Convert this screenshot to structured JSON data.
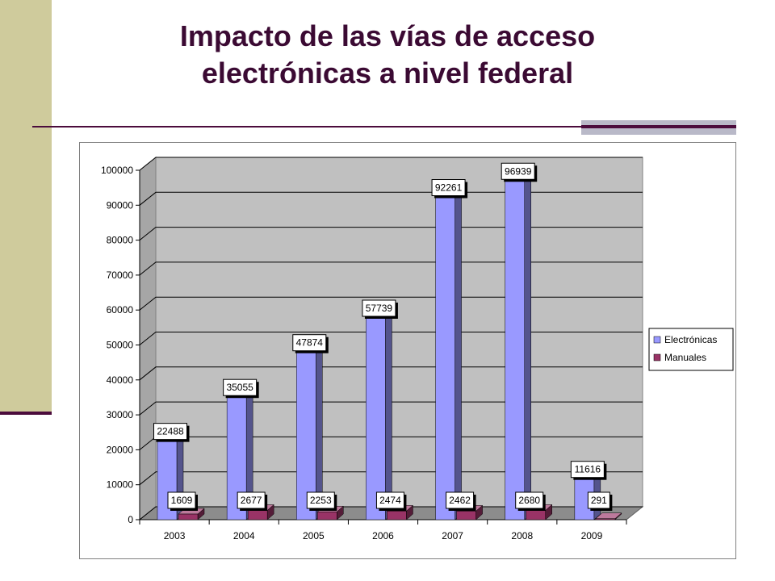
{
  "title": {
    "line1": "Impacto de las vías de acceso",
    "line2": "electrónicas a nivel federal"
  },
  "colors": {
    "accent_band": "#cfcb9c",
    "accent_line": "#4b0c3c",
    "title_text": "#3b0a33",
    "series_electronicas": "#9999ff",
    "series_manuales": "#993366",
    "plot_wall": "#c0c0c0"
  },
  "chart_data": {
    "type": "bar",
    "categories": [
      "2003",
      "2004",
      "2005",
      "2006",
      "2007",
      "2008",
      "2009"
    ],
    "series": [
      {
        "name": "Electrónicas",
        "values": [
          22488,
          35055,
          47874,
          57739,
          92261,
          96939,
          11616
        ]
      },
      {
        "name": "Manuales",
        "values": [
          1609,
          2677,
          2253,
          2474,
          2462,
          2680,
          291
        ]
      }
    ],
    "yticks": [
      "0",
      "10000",
      "20000",
      "30000",
      "40000",
      "50000",
      "60000",
      "70000",
      "80000",
      "90000",
      "100000"
    ],
    "ylim": [
      0,
      100000
    ],
    "grid": true,
    "legend_position": "right",
    "three_d": true
  }
}
